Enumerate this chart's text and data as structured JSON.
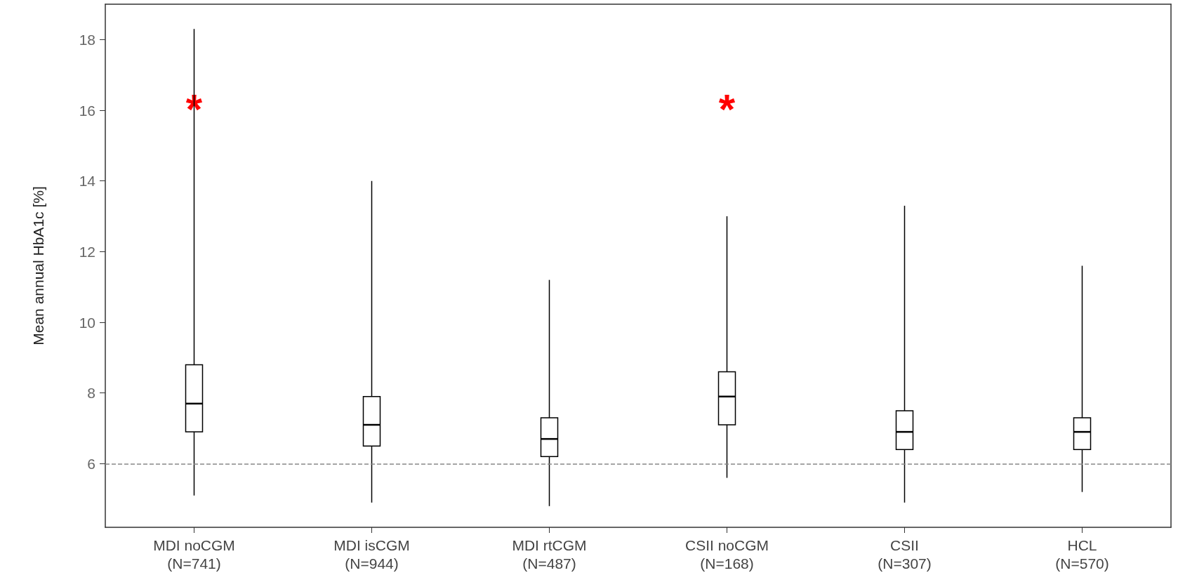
{
  "chart_data": {
    "type": "box",
    "ylabel": "Mean annual HbA1c [%]",
    "categories": [
      "MDI noCGM\n(N=741)",
      "MDI isCGM\n(N=944)",
      "MDI rtCGM\n(N=487)",
      "CSII noCGM\n(N=168)",
      "CSII\n(N=307)",
      "HCL\n(N=570)"
    ],
    "boxes": [
      {
        "low": 5.1,
        "q1": 6.9,
        "median": 7.7,
        "q3": 8.8,
        "high": 18.3
      },
      {
        "low": 4.9,
        "q1": 6.5,
        "median": 7.1,
        "q3": 7.9,
        "high": 14.0
      },
      {
        "low": 4.8,
        "q1": 6.2,
        "median": 6.7,
        "q3": 7.3,
        "high": 11.2
      },
      {
        "low": 5.6,
        "q1": 7.1,
        "median": 7.9,
        "q3": 8.6,
        "high": 13.0
      },
      {
        "low": 4.9,
        "q1": 6.4,
        "median": 6.9,
        "q3": 7.5,
        "high": 13.3
      },
      {
        "low": 5.2,
        "q1": 6.4,
        "median": 6.9,
        "q3": 7.3,
        "high": 11.6
      }
    ],
    "ylim": [
      4.2,
      19
    ],
    "yticks": [
      6,
      8,
      10,
      12,
      14,
      16,
      18
    ],
    "grid": false,
    "ref_lines": [
      {
        "axis": "y",
        "value": 6,
        "line_style": "dashed",
        "color": "#888888"
      }
    ],
    "annotations": [
      "*",
      "*"
    ]
  }
}
